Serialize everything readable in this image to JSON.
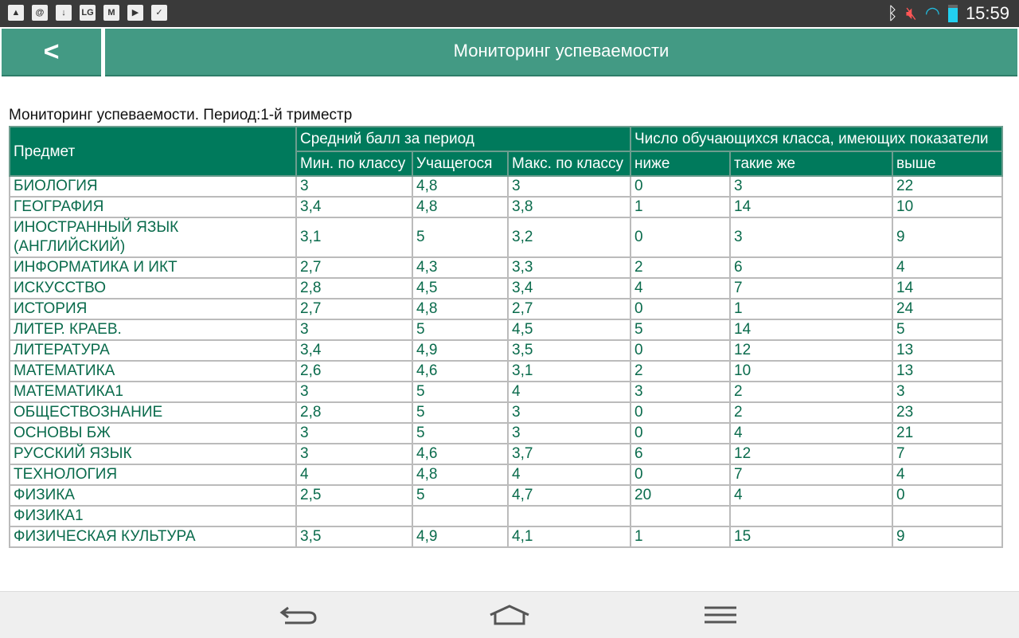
{
  "status_bar": {
    "time": "15:59",
    "icons": [
      "gallery-icon",
      "email-at-icon",
      "download-icon",
      "lg-icon",
      "gmail-icon",
      "play-store-icon",
      "task-icon"
    ]
  },
  "app_bar": {
    "back_label": "<",
    "title": "Мониторинг успеваемости"
  },
  "caption": "Мониторинг успеваемости. Период:1-й триместр",
  "table": {
    "headers": {
      "subject": "Предмет",
      "avg_group": "Средний балл за период",
      "count_group": "Число обучающихся класса, имеющих показатели",
      "min": "Мин. по классу",
      "student": "Учащегося",
      "max": "Макс. по классу",
      "lower": "ниже",
      "same": "такие же",
      "higher": "выше"
    },
    "rows": [
      [
        "БИОЛОГИЯ",
        "3",
        "4,8",
        "3",
        "0",
        "3",
        "22"
      ],
      [
        "ГЕОГРАФИЯ",
        "3,4",
        "4,8",
        "3,8",
        "1",
        "14",
        "10"
      ],
      [
        "ИНОСТРАННЫЙ ЯЗЫК (АНГЛИЙСКИЙ)",
        "3,1",
        "5",
        "3,2",
        "0",
        "3",
        "9"
      ],
      [
        "ИНФОРМАТИКА И ИКТ",
        "2,7",
        "4,3",
        "3,3",
        "2",
        "6",
        "4"
      ],
      [
        "ИСКУССТВО",
        "2,8",
        "4,5",
        "3,4",
        "4",
        "7",
        "14"
      ],
      [
        "ИСТОРИЯ",
        "2,7",
        "4,8",
        "2,7",
        "0",
        "1",
        "24"
      ],
      [
        "ЛИТЕР. КРАЕВ.",
        "3",
        "5",
        "4,5",
        "5",
        "14",
        "5"
      ],
      [
        "ЛИТЕРАТУРА",
        "3,4",
        "4,9",
        "3,5",
        "0",
        "12",
        "13"
      ],
      [
        "МАТЕМАТИКА",
        "2,6",
        "4,6",
        "3,1",
        "2",
        "10",
        "13"
      ],
      [
        "МАТЕМАТИКА1",
        "3",
        "5",
        "4",
        "3",
        "2",
        "3"
      ],
      [
        "ОБЩЕСТВОЗНАНИЕ",
        "2,8",
        "5",
        "3",
        "0",
        "2",
        "23"
      ],
      [
        "ОСНОВЫ БЖ",
        "3",
        "5",
        "3",
        "0",
        "4",
        "21"
      ],
      [
        "РУССКИЙ ЯЗЫК",
        "3",
        "4,6",
        "3,7",
        "6",
        "12",
        "7"
      ],
      [
        "ТЕХНОЛОГИЯ",
        "4",
        "4,8",
        "4",
        "0",
        "7",
        "4"
      ],
      [
        "ФИЗИКА",
        "2,5",
        "5",
        "4,7",
        "20",
        "4",
        "0"
      ],
      [
        "ФИЗИКА1",
        "",
        "",
        "",
        "",
        "",
        ""
      ],
      [
        "ФИЗИЧЕСКАЯ КУЛЬТУРА",
        "3,5",
        "4,9",
        "4,1",
        "1",
        "15",
        "9"
      ]
    ]
  },
  "nav_bar": {
    "buttons": [
      "back-icon",
      "home-icon",
      "menu-icon"
    ]
  },
  "colors": {
    "app_bar": "#439a84",
    "table_header": "#007a5c",
    "cell_text": "#0a6b4c"
  }
}
